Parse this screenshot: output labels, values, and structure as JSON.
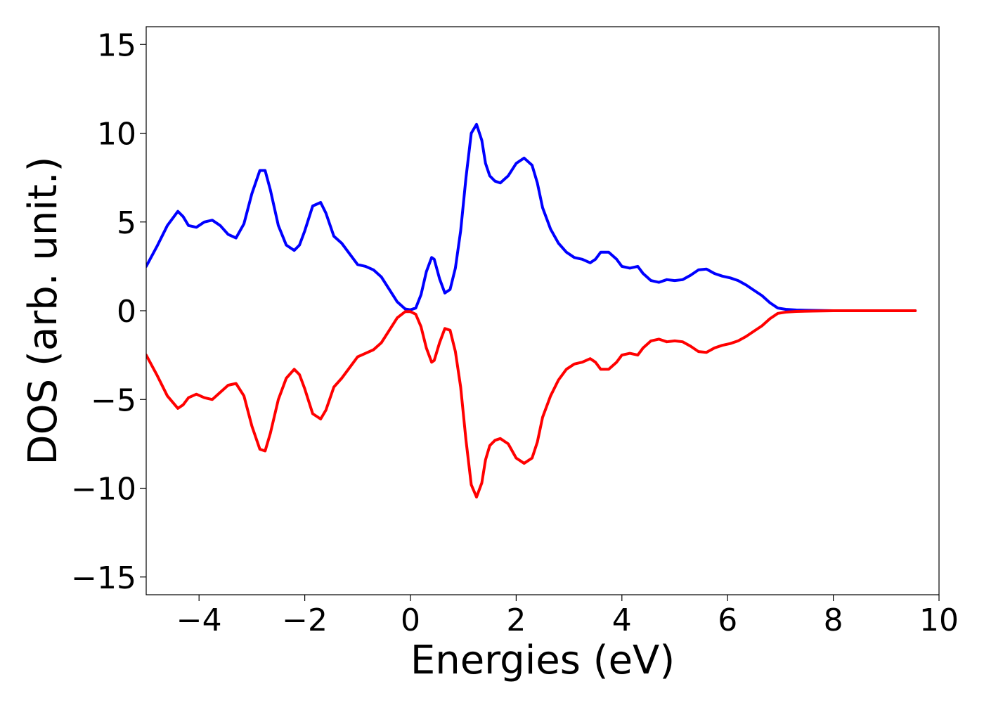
{
  "chart_data": {
    "type": "line",
    "title": "",
    "xlabel": "Energies (eV)",
    "ylabel": "DOS (arb. unit.)",
    "xlim": [
      -5,
      10
    ],
    "ylim": [
      -16,
      16
    ],
    "xticks": [
      -4,
      -2,
      0,
      2,
      4,
      6,
      8,
      10
    ],
    "yticks": [
      -15,
      -10,
      -5,
      0,
      5,
      10,
      15
    ],
    "xtick_labels": [
      "−4",
      "−2",
      "0",
      "2",
      "4",
      "6",
      "8",
      "10"
    ],
    "ytick_labels": [
      "−15",
      "−10",
      "−5",
      "0",
      "5",
      "10",
      "15"
    ],
    "grid": false,
    "legend": "none",
    "series": [
      {
        "color": "#0000ff",
        "x": [
          -5.0,
          -4.8,
          -4.6,
          -4.4,
          -4.3,
          -4.2,
          -4.05,
          -3.9,
          -3.75,
          -3.6,
          -3.45,
          -3.3,
          -3.15,
          -3.0,
          -2.85,
          -2.75,
          -2.65,
          -2.5,
          -2.35,
          -2.2,
          -2.1,
          -2.0,
          -1.85,
          -1.7,
          -1.6,
          -1.45,
          -1.3,
          -1.15,
          -1.0,
          -0.85,
          -0.7,
          -0.55,
          -0.4,
          -0.25,
          -0.1,
          0.0,
          0.1,
          0.2,
          0.3,
          0.4,
          0.45,
          0.55,
          0.65,
          0.75,
          0.85,
          0.95,
          1.05,
          1.15,
          1.25,
          1.35,
          1.42,
          1.5,
          1.6,
          1.7,
          1.85,
          2.0,
          2.15,
          2.3,
          2.4,
          2.5,
          2.65,
          2.8,
          2.95,
          3.1,
          3.25,
          3.4,
          3.5,
          3.6,
          3.75,
          3.9,
          4.0,
          4.15,
          4.3,
          4.4,
          4.55,
          4.7,
          4.85,
          5.0,
          5.15,
          5.3,
          5.45,
          5.6,
          5.75,
          5.9,
          6.05,
          6.2,
          6.35,
          6.5,
          6.65,
          6.8,
          6.95,
          7.1,
          7.3,
          7.6,
          8.0,
          9.0,
          9.55
        ],
        "y": [
          2.5,
          3.6,
          4.8,
          5.6,
          5.3,
          4.8,
          4.7,
          5.0,
          5.1,
          4.8,
          4.3,
          4.1,
          4.9,
          6.6,
          7.9,
          7.9,
          6.8,
          4.8,
          3.7,
          3.4,
          3.7,
          4.5,
          5.9,
          6.1,
          5.5,
          4.2,
          3.8,
          3.2,
          2.6,
          2.5,
          2.3,
          1.9,
          1.2,
          0.5,
          0.1,
          0.05,
          0.15,
          0.9,
          2.2,
          3.0,
          2.9,
          1.8,
          1.0,
          1.2,
          2.4,
          4.5,
          7.5,
          10.0,
          10.5,
          9.6,
          8.3,
          7.6,
          7.3,
          7.2,
          7.6,
          8.3,
          8.6,
          8.2,
          7.2,
          5.8,
          4.6,
          3.8,
          3.3,
          3.0,
          2.9,
          2.7,
          2.9,
          3.3,
          3.3,
          2.9,
          2.5,
          2.4,
          2.5,
          2.1,
          1.7,
          1.6,
          1.75,
          1.7,
          1.75,
          2.0,
          2.3,
          2.35,
          2.1,
          1.95,
          1.85,
          1.7,
          1.45,
          1.15,
          0.85,
          0.45,
          0.15,
          0.08,
          0.04,
          0.02,
          0.0,
          0.0,
          0.0
        ]
      },
      {
        "color": "#ff0000",
        "x": [
          -5.0,
          -4.8,
          -4.6,
          -4.4,
          -4.3,
          -4.2,
          -4.05,
          -3.9,
          -3.75,
          -3.6,
          -3.45,
          -3.3,
          -3.15,
          -3.0,
          -2.85,
          -2.75,
          -2.65,
          -2.5,
          -2.35,
          -2.2,
          -2.1,
          -2.0,
          -1.85,
          -1.7,
          -1.6,
          -1.45,
          -1.3,
          -1.15,
          -1.0,
          -0.85,
          -0.7,
          -0.55,
          -0.4,
          -0.25,
          -0.1,
          0.0,
          0.1,
          0.2,
          0.3,
          0.4,
          0.45,
          0.55,
          0.65,
          0.75,
          0.85,
          0.95,
          1.05,
          1.15,
          1.25,
          1.35,
          1.42,
          1.5,
          1.6,
          1.7,
          1.85,
          2.0,
          2.15,
          2.3,
          2.4,
          2.5,
          2.65,
          2.8,
          2.95,
          3.1,
          3.25,
          3.4,
          3.5,
          3.6,
          3.75,
          3.9,
          4.0,
          4.15,
          4.3,
          4.4,
          4.55,
          4.7,
          4.85,
          5.0,
          5.15,
          5.3,
          5.45,
          5.6,
          5.75,
          5.9,
          6.05,
          6.2,
          6.35,
          6.5,
          6.65,
          6.8,
          6.95,
          7.1,
          7.3,
          7.6,
          8.0,
          9.0,
          9.55
        ],
        "y": [
          -2.5,
          -3.6,
          -4.8,
          -5.5,
          -5.3,
          -4.9,
          -4.7,
          -4.9,
          -5.0,
          -4.6,
          -4.2,
          -4.1,
          -4.8,
          -6.5,
          -7.8,
          -7.9,
          -6.9,
          -5.0,
          -3.8,
          -3.3,
          -3.6,
          -4.4,
          -5.8,
          -6.1,
          -5.6,
          -4.3,
          -3.8,
          -3.2,
          -2.6,
          -2.4,
          -2.2,
          -1.8,
          -1.1,
          -0.4,
          -0.05,
          -0.05,
          -0.2,
          -0.9,
          -2.1,
          -2.9,
          -2.8,
          -1.8,
          -1.0,
          -1.1,
          -2.3,
          -4.3,
          -7.3,
          -9.8,
          -10.5,
          -9.7,
          -8.4,
          -7.6,
          -7.3,
          -7.2,
          -7.5,
          -8.3,
          -8.6,
          -8.3,
          -7.4,
          -6.0,
          -4.8,
          -3.9,
          -3.3,
          -3.0,
          -2.9,
          -2.7,
          -2.9,
          -3.3,
          -3.3,
          -2.9,
          -2.5,
          -2.4,
          -2.5,
          -2.1,
          -1.7,
          -1.6,
          -1.75,
          -1.7,
          -1.75,
          -2.0,
          -2.3,
          -2.35,
          -2.1,
          -1.95,
          -1.85,
          -1.7,
          -1.45,
          -1.15,
          -0.85,
          -0.45,
          -0.15,
          -0.08,
          -0.04,
          -0.02,
          0.0,
          0.0,
          0.0
        ]
      }
    ]
  }
}
